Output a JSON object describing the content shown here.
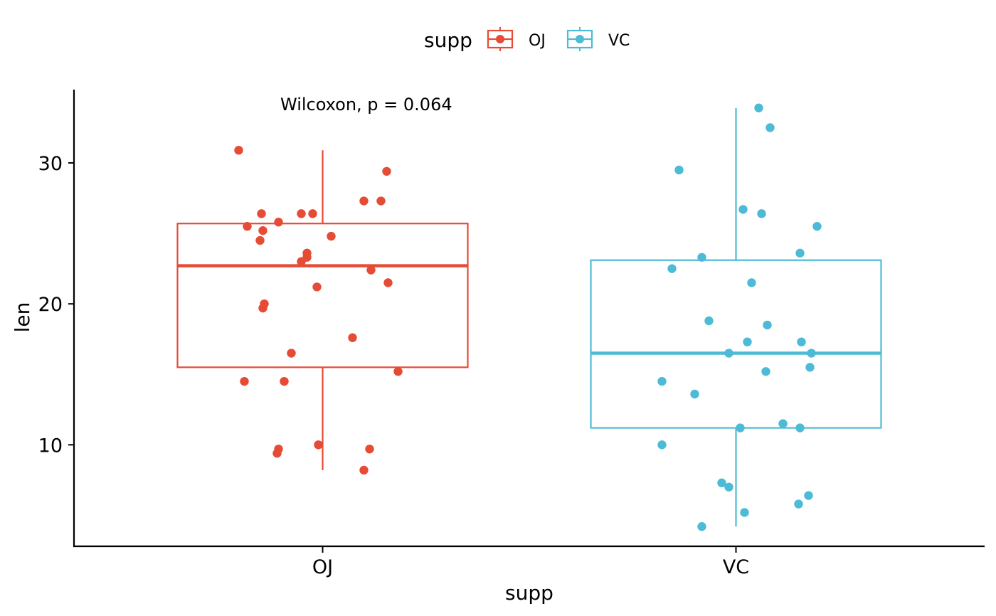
{
  "legend": {
    "title": "supp",
    "items": [
      {
        "label": "OJ",
        "color": "#E64B35"
      },
      {
        "label": "VC",
        "color": "#4DBBD5"
      }
    ]
  },
  "annotation": "Wilcoxon, p = 0.064",
  "chart_data": {
    "type": "box",
    "title": "",
    "xlabel": "supp",
    "ylabel": "len",
    "categories": [
      "OJ",
      "VC"
    ],
    "ylim": [
      2.8,
      35.2
    ],
    "yticks": [
      10,
      20,
      30
    ],
    "grid": false,
    "legend_position": "top",
    "series": [
      {
        "name": "OJ",
        "color": "#E64B35",
        "box": {
          "whisker_low": 8.2,
          "q1": 15.5,
          "median": 22.7,
          "q3": 25.7,
          "whisker_high": 30.9
        },
        "points": [
          {
            "x": -0.59,
            "y": 30.9
          },
          {
            "x": 0.45,
            "y": 29.4
          },
          {
            "x": 0.29,
            "y": 27.3
          },
          {
            "x": 0.41,
            "y": 27.3
          },
          {
            "x": -0.43,
            "y": 26.4
          },
          {
            "x": -0.15,
            "y": 26.4
          },
          {
            "x": -0.07,
            "y": 26.4
          },
          {
            "x": -0.31,
            "y": 25.8
          },
          {
            "x": -0.53,
            "y": 25.5
          },
          {
            "x": -0.42,
            "y": 25.2
          },
          {
            "x": 0.06,
            "y": 24.8
          },
          {
            "x": -0.44,
            "y": 24.5
          },
          {
            "x": -0.11,
            "y": 23.6
          },
          {
            "x": -0.11,
            "y": 23.3
          },
          {
            "x": -0.15,
            "y": 23.0
          },
          {
            "x": 0.34,
            "y": 22.4
          },
          {
            "x": 0.46,
            "y": 21.5
          },
          {
            "x": -0.04,
            "y": 21.2
          },
          {
            "x": -0.41,
            "y": 20.0
          },
          {
            "x": -0.42,
            "y": 19.7
          },
          {
            "x": 0.21,
            "y": 17.6
          },
          {
            "x": -0.22,
            "y": 16.5
          },
          {
            "x": 0.53,
            "y": 15.2
          },
          {
            "x": -0.55,
            "y": 14.5
          },
          {
            "x": -0.27,
            "y": 14.5
          },
          {
            "x": -0.03,
            "y": 10.0
          },
          {
            "x": -0.31,
            "y": 9.7
          },
          {
            "x": 0.33,
            "y": 9.7
          },
          {
            "x": -0.32,
            "y": 9.4
          },
          {
            "x": 0.29,
            "y": 8.2
          }
        ]
      },
      {
        "name": "VC",
        "color": "#4DBBD5",
        "box": {
          "whisker_low": 4.2,
          "q1": 11.2,
          "median": 16.5,
          "q3": 23.1,
          "whisker_high": 33.9
        },
        "points": [
          {
            "x": 0.16,
            "y": 33.9
          },
          {
            "x": 0.24,
            "y": 32.5
          },
          {
            "x": -0.4,
            "y": 29.5
          },
          {
            "x": 0.05,
            "y": 26.7
          },
          {
            "x": 0.18,
            "y": 26.4
          },
          {
            "x": 0.57,
            "y": 25.5
          },
          {
            "x": 0.45,
            "y": 23.6
          },
          {
            "x": -0.24,
            "y": 23.3
          },
          {
            "x": -0.45,
            "y": 22.5
          },
          {
            "x": 0.11,
            "y": 21.5
          },
          {
            "x": -0.19,
            "y": 18.8
          },
          {
            "x": 0.22,
            "y": 18.5
          },
          {
            "x": 0.08,
            "y": 17.3
          },
          {
            "x": 0.46,
            "y": 17.3
          },
          {
            "x": -0.05,
            "y": 16.5
          },
          {
            "x": 0.53,
            "y": 16.5
          },
          {
            "x": 0.52,
            "y": 15.5
          },
          {
            "x": 0.21,
            "y": 15.2
          },
          {
            "x": -0.52,
            "y": 14.5
          },
          {
            "x": -0.29,
            "y": 13.6
          },
          {
            "x": 0.33,
            "y": 11.5
          },
          {
            "x": 0.03,
            "y": 11.2
          },
          {
            "x": 0.45,
            "y": 11.2
          },
          {
            "x": -0.52,
            "y": 10.0
          },
          {
            "x": -0.1,
            "y": 7.3
          },
          {
            "x": -0.05,
            "y": 7.0
          },
          {
            "x": 0.51,
            "y": 6.4
          },
          {
            "x": 0.44,
            "y": 5.8
          },
          {
            "x": 0.06,
            "y": 5.2
          },
          {
            "x": -0.24,
            "y": 4.2
          }
        ]
      }
    ]
  }
}
